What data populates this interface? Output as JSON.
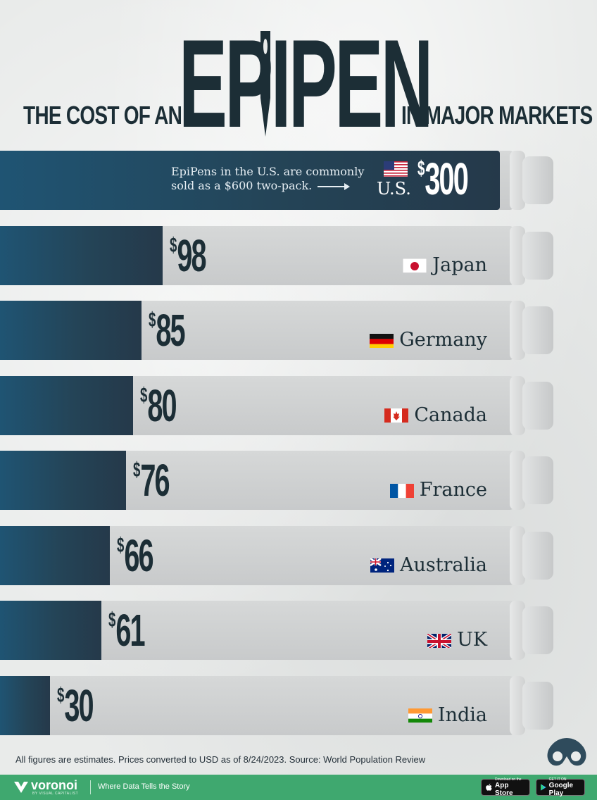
{
  "title": {
    "prefix": "THE COST OF AN",
    "product": "EPIPEN",
    "suffix": "IN MAJOR MARKETS"
  },
  "chart_data": {
    "type": "bar",
    "orientation": "horizontal",
    "title": "THE COST OF AN EPIPEN IN MAJOR MARKETS",
    "unit": "USD",
    "categories": [
      "U.S.",
      "Japan",
      "Germany",
      "Canada",
      "France",
      "Australia",
      "UK",
      "India"
    ],
    "values": [
      300,
      98,
      85,
      80,
      76,
      66,
      61,
      30
    ],
    "value_labels": [
      "300",
      "98",
      "85",
      "80",
      "76",
      "66",
      "61",
      "30"
    ],
    "currency_symbol": "$",
    "annotation": {
      "line1": "EpiPens in the U.S. are commonly",
      "line2": "sold as a $600 two-pack."
    },
    "xlim": [
      0,
      300
    ]
  },
  "flags": [
    "us-flag-icon",
    "japan-flag-icon",
    "germany-flag-icon",
    "canada-flag-icon",
    "france-flag-icon",
    "australia-flag-icon",
    "uk-flag-icon",
    "india-flag-icon"
  ],
  "colors": {
    "bar_fill": "#244457",
    "bar_fill_us": "#1f5473",
    "pen_body": "#cfd1d1",
    "text_dark": "#1c2e36",
    "footer": "#3fa86f"
  },
  "footer": {
    "source": "All figures are estimates. Prices converted to USD as of 8/24/2023. Source: World Population Review",
    "brand": "voronoi",
    "brand_sub": "BY VISUAL CAPITALIST",
    "tagline": "Where Data Tells the Story",
    "appstore_small": "Download on the",
    "appstore_big": "App Store",
    "gplay_small": "GET IT ON",
    "gplay_big": "Google Play"
  }
}
